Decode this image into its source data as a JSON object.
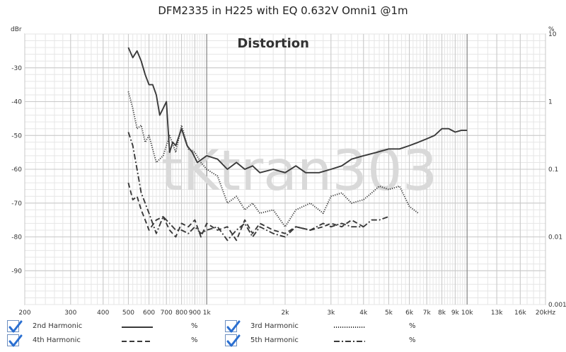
{
  "title": "DFM2335 in H225 with EQ 0.632V Omni1 @1m",
  "watermark": "tKtran303",
  "chart_data": {
    "type": "line",
    "title": "Distortion",
    "y_left_unit": "dBr",
    "y_right_unit": "%",
    "x_scale": "log",
    "xlim": [
      200,
      20000
    ],
    "ylim": [
      -100,
      -20
    ],
    "y_right_lim": [
      0.001,
      10
    ],
    "x_ticks": [
      200,
      300,
      400,
      500,
      600,
      700,
      800,
      900,
      1000,
      2000,
      3000,
      4000,
      5000,
      6000,
      7000,
      8000,
      9000,
      10000,
      13000,
      16000,
      20000
    ],
    "x_tick_labels": [
      "200",
      "300",
      "400",
      "500",
      "600",
      "700",
      "800",
      "900",
      "1k",
      "2k",
      "3k",
      "4k",
      "5k",
      "6k",
      "7k",
      "8k",
      "9k",
      "10k",
      "13k",
      "16k",
      "20kHz"
    ],
    "y_ticks": [
      -30,
      -40,
      -50,
      -60,
      -70,
      -80,
      -90
    ],
    "y_tick_labels": [
      "-30",
      "-40",
      "-50",
      "-60",
      "-70",
      "-80",
      "-90"
    ],
    "y_right_ticks": [
      10,
      1,
      0.1,
      0.01,
      0.001
    ],
    "y_right_tick_labels": [
      "10",
      "1",
      "0.1",
      "0.01",
      "0.001"
    ],
    "grid": true,
    "series": [
      {
        "name": "2nd Harmonic",
        "style": "solid",
        "x": [
          500,
          520,
          540,
          560,
          580,
          600,
          620,
          640,
          660,
          680,
          700,
          720,
          740,
          760,
          800,
          840,
          880,
          920,
          1000,
          1100,
          1200,
          1300,
          1400,
          1500,
          1600,
          1800,
          2000,
          2200,
          2400,
          2700,
          3000,
          3300,
          3600,
          4000,
          4500,
          5000,
          5500,
          6000,
          6500,
          7000,
          7500,
          8000,
          8500,
          9000,
          9500,
          10000
        ],
        "y": [
          -24,
          -27,
          -25,
          -28,
          -32,
          -35,
          -35,
          -38,
          -44,
          -42,
          -40,
          -55,
          -52,
          -53,
          -48,
          -53,
          -55,
          -58,
          -56,
          -57,
          -60,
          -58,
          -60,
          -59,
          -61,
          -60,
          -61,
          -59,
          -61,
          -61,
          -60,
          -59,
          -57,
          -56,
          -55,
          -54,
          -54,
          -53,
          -52,
          -51,
          -50,
          -48,
          -48,
          -49,
          -48.5,
          -48.5
        ]
      },
      {
        "name": "3rd Harmonic",
        "style": "dotted",
        "x": [
          500,
          520,
          540,
          560,
          580,
          600,
          640,
          680,
          720,
          760,
          800,
          850,
          900,
          950,
          1000,
          1100,
          1200,
          1300,
          1400,
          1500,
          1600,
          1800,
          2000,
          2200,
          2500,
          2800,
          3000,
          3300,
          3600,
          4000,
          4300,
          4600,
          5000,
          5500,
          6000,
          6500
        ],
        "y": [
          -37,
          -42,
          -48,
          -47,
          -52,
          -50,
          -58,
          -56,
          -50,
          -55,
          -47,
          -54,
          -55,
          -58,
          -60,
          -62,
          -70,
          -68,
          -72,
          -70,
          -73,
          -72,
          -77,
          -72,
          -70,
          -73,
          -68,
          -67,
          -70,
          -69,
          -67,
          -65,
          -66,
          -65,
          -71,
          -73
        ]
      },
      {
        "name": "4th Harmonic",
        "style": "dashed",
        "x": [
          500,
          520,
          540,
          560,
          580,
          600,
          640,
          680,
          720,
          760,
          800,
          850,
          900,
          950,
          1000,
          1100,
          1200,
          1300,
          1400,
          1500,
          1600,
          1800,
          2000,
          2200,
          2500,
          2800,
          3000,
          3300,
          3600,
          4000
        ],
        "y": [
          -64,
          -69,
          -68,
          -72,
          -75,
          -78,
          -75,
          -74,
          -78,
          -80,
          -76,
          -77,
          -75,
          -80,
          -76,
          -78,
          -77,
          -81,
          -75,
          -79,
          -76,
          -78,
          -79,
          -77,
          -78,
          -77,
          -76,
          -77,
          -75,
          -77
        ]
      },
      {
        "name": "5th Harmonic",
        "style": "dashdot",
        "x": [
          500,
          520,
          540,
          560,
          580,
          600,
          640,
          680,
          720,
          760,
          800,
          850,
          900,
          950,
          1000,
          1100,
          1200,
          1300,
          1400,
          1500,
          1600,
          1800,
          2000,
          2200,
          2500,
          2800,
          3000,
          3300,
          3600,
          4000,
          4300,
          4600,
          5000
        ],
        "y": [
          -49,
          -53,
          -60,
          -67,
          -70,
          -73,
          -79,
          -74,
          -76,
          -78,
          -78,
          -79,
          -77,
          -79,
          -78,
          -77,
          -81,
          -78,
          -76,
          -80,
          -77,
          -79,
          -80,
          -77,
          -78,
          -76,
          -77,
          -76,
          -77,
          -77,
          -75,
          -75,
          -74
        ]
      }
    ]
  },
  "legend": {
    "items": [
      {
        "label": "2nd Harmonic",
        "unit": "%",
        "style": "solid",
        "checked": true
      },
      {
        "label": "3rd Harmonic",
        "unit": "%",
        "style": "dotted",
        "checked": true
      },
      {
        "label": "4th Harmonic",
        "unit": "%",
        "style": "dashed",
        "checked": true
      },
      {
        "label": "5th Harmonic",
        "unit": "%",
        "style": "dashdot",
        "checked": true
      }
    ]
  },
  "colors": {
    "line": "#3a3a3a",
    "grid_minor": "#e6e6e6",
    "grid_major": "#8a8a8a",
    "checkbox": "#2a6fd1",
    "watermark": "#d9d9d9"
  }
}
